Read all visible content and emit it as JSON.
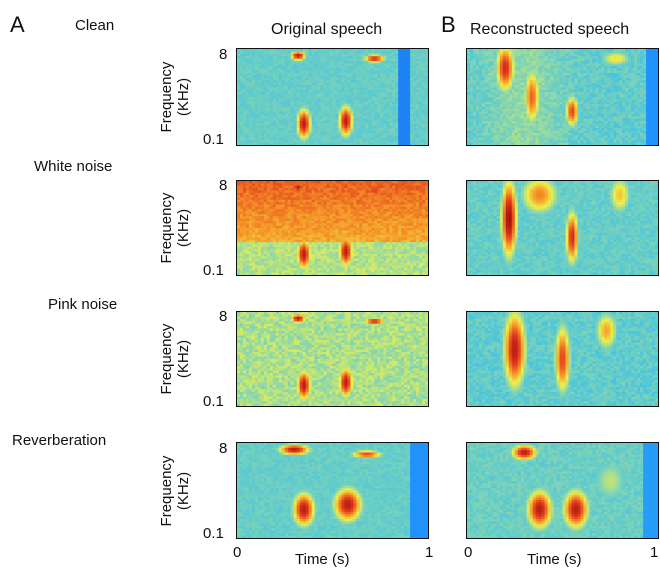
{
  "panel_labels": {
    "a": "A",
    "b": "B"
  },
  "column_titles": {
    "original": "Original speech",
    "reconstructed": "Reconstructed speech"
  },
  "conditions": [
    "Clean",
    "White noise",
    "Pink noise",
    "Reverberation"
  ],
  "y_axis": {
    "label_line1": "Frequency",
    "label_line2": "(KHz)",
    "tick_top": "8",
    "tick_bottom": "0.1"
  },
  "x_axis": {
    "label": "Time (s)",
    "tick_start": "0",
    "tick_end": "1"
  },
  "colormap": [
    "#1f3fbf",
    "#1e90ff",
    "#3fc1e8",
    "#8fd8a8",
    "#f0f04a",
    "#f59a2a",
    "#e23a1c",
    "#a01010"
  ]
}
